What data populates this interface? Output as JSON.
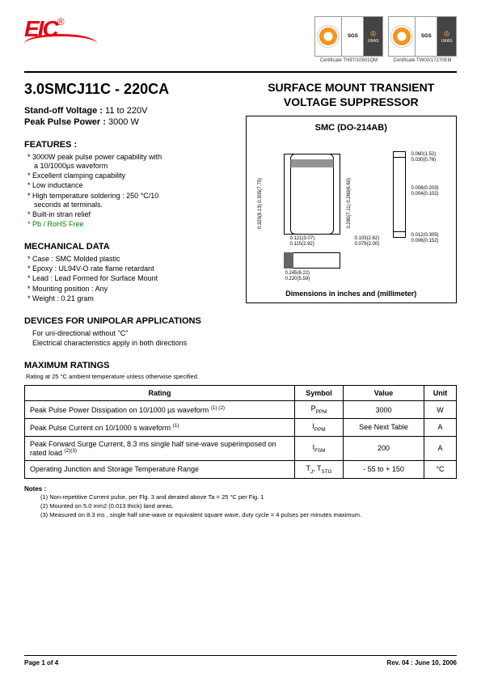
{
  "header": {
    "logo_text": "EIC",
    "reg": "®",
    "certs": [
      {
        "sgs": "SGS",
        "ukas": "UKAS",
        "caption": "Certificate  TH97/10501QM"
      },
      {
        "sgs": "SGS",
        "ukas": "UKAS",
        "caption": "Certificate  TW00/17270EM"
      }
    ]
  },
  "part_number": "3.0SMCJ11C - 220CA",
  "standoff": {
    "label": "Stand-off Voltage :",
    "value": "11 to 220V"
  },
  "peakpower": {
    "label": "Peak Pulse Power :",
    "value": "3000 W"
  },
  "features_title": "FEATURES :",
  "features": [
    "3000W peak pulse power capability with",
    "  a 10/1000µs  waveform",
    "Excellent clamping capability",
    "Low inductance",
    "High temperature soldering : 250 °C/10",
    "  seconds at terminals.",
    "Built-in stran relief",
    "Pb / RoHS Free"
  ],
  "features_green_index": 7,
  "mech_title": "MECHANICAL DATA",
  "mech": [
    "Case :  SMC Molded plastic",
    "Epoxy : UL94V-O rate flame retardant",
    "Lead : Lead Formed for Surface Mount",
    "Mounting  position : Any",
    "Weight : 0.21 gram"
  ],
  "right_title_1": "SURFACE MOUNT TRANSIENT",
  "right_title_2": "VOLTAGE SUPPRESSOR",
  "diagram": {
    "title": "SMC (DO-214AB)",
    "caption": "Dimensions in inches and  (millimeter)",
    "dims": {
      "d1": "0.060(1.52)",
      "d2": "0.030(0.76)",
      "d3": "0.008(0.203)",
      "d4": "0.004(0.102)",
      "d5": "0.012(0.305)",
      "d6": "0.006(0.152)",
      "d7": "0.320(8.13)",
      "d8": "0.305(7.75)",
      "d9": "0.280(7.11)",
      "d10": "0.260(6.60)",
      "d11": "0.121(3.07)",
      "d12": "0.115(2.92)",
      "d13": "0.245(6.22)",
      "d14": "0.220(5.59)",
      "d15": "0.103(2.62)",
      "d16": "0.079(2.00)"
    }
  },
  "devices_title": "DEVICES FOR UNIPOLAR APPLICATIONS",
  "devices_lines": [
    "For uni-directional without \"C\"",
    "Electrical characteristics apply in both directions"
  ],
  "max_title": "MAXIMUM RATINGS",
  "max_note": "Rating at 25 °C ambient temperature unless otherwise specified.",
  "ratings_table": {
    "headers": [
      "Rating",
      "Symbol",
      "Value",
      "Unit"
    ],
    "rows": [
      {
        "rating": "Peak Pulse Power Dissipation on 10/1000 µs waveform",
        "sup": "(1) (2)",
        "symbol": "P",
        "sub": "PPM",
        "value": "3000",
        "unit": "W"
      },
      {
        "rating": "Peak Pulse Current on 10/1000 s waveform",
        "sup": "(1)",
        "symbol": "I",
        "sub": "PPM",
        "value": "See Next Table",
        "unit": "A"
      },
      {
        "rating": "Peak Forward Surge Current, 8.3 ms single half sine-wave superimposed on rated load",
        "sup": "(2)(3)",
        "symbol": "I",
        "sub": "FSM",
        "value": "200",
        "unit": "A"
      },
      {
        "rating": "Operating Junction and Storage Temperature Range",
        "sup": "",
        "symbol": "T",
        "sub": "J",
        "symbol2": ", T",
        "sub2": "STG",
        "value": "- 55 to + 150",
        "unit": "°C"
      }
    ]
  },
  "notes_title": "Notes :",
  "notes": [
    "(1) Non-repetitive Current pulse, per Flg. 3 and derated above Ta = 25 °C per Fig. 1",
    "(2) Mounted on 5.0 mm2 (0.013 thick) land areas.",
    "(3) Measured on 8.3 ms , single half sine-wave or equivalent square wave, duty cycle = 4 pulses per minutes maximum."
  ],
  "footer": {
    "left": "Page 1 of 4",
    "right": "Rev. 04 : June 10, 2006"
  }
}
